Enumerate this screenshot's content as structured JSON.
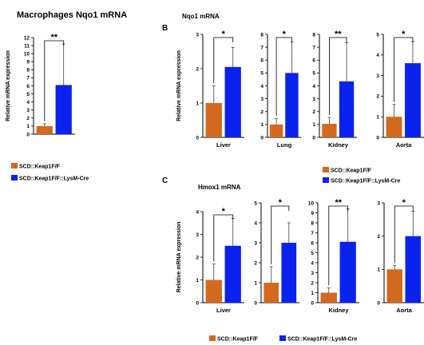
{
  "figure": {
    "panel_a_title": "Macrophages Nqo1 mRNA",
    "panel_b_letter": "B",
    "panel_b_title": "Nqo1 mRNA",
    "panel_c_letter": "C",
    "panel_c_title": "Hmox1 mRNA"
  },
  "colors": {
    "control": "#d2691e",
    "lysm": "#0a22ee"
  },
  "legends": {
    "a": [
      "SCD::Keap1F/F",
      "SCD::Keap1F/F::LysM-Cre"
    ],
    "b": [
      "SCD::Keap1F/F",
      "SCD::Keap1F/F::LysM-Cre"
    ],
    "c": [
      "SCD::Keap1F/F",
      "SCD::Keap1F/F::LysM-Cre"
    ]
  },
  "chart_data": [
    {
      "id": "a1",
      "type": "bar",
      "title": "",
      "ylabel": "Relative mRNA expression",
      "xlabel": "",
      "ylim": [
        0,
        12
      ],
      "ticks": [
        0,
        1,
        2,
        3,
        4,
        5,
        6,
        7,
        8,
        9,
        10,
        11,
        12
      ],
      "categories": [
        "SCD::Keap1F/F",
        "SCD::Keap1F/F::LysM-Cre"
      ],
      "values": [
        1.0,
        6.1
      ],
      "errors": [
        0.3,
        5.1
      ],
      "significance": "**"
    },
    {
      "id": "b1",
      "type": "bar",
      "title": "",
      "ylabel": "Relative mRNA expression",
      "xlabel": "Liver",
      "ylim": [
        0,
        3
      ],
      "ticks": [
        0,
        1,
        2,
        3
      ],
      "categories": [
        "SCD::Keap1F/F",
        "SCD::Keap1F/F::LysM-Cre"
      ],
      "values": [
        1.0,
        2.05
      ],
      "errors": [
        0.5,
        0.57
      ],
      "significance": "*"
    },
    {
      "id": "b2",
      "type": "bar",
      "title": "",
      "ylabel": "",
      "xlabel": "Lung",
      "ylim": [
        0,
        8
      ],
      "ticks": [
        0,
        1,
        2,
        3,
        4,
        5,
        6,
        7,
        8
      ],
      "categories": [
        "SCD::Keap1F/F",
        "SCD::Keap1F/F::LysM-Cre"
      ],
      "values": [
        1.0,
        5.0
      ],
      "errors": [
        0.45,
        2.4
      ],
      "significance": "*"
    },
    {
      "id": "b3",
      "type": "bar",
      "title": "",
      "ylabel": "",
      "xlabel": "Kidney",
      "ylim": [
        0,
        8
      ],
      "ticks": [
        0,
        1,
        2,
        3,
        4,
        5,
        6,
        7,
        8
      ],
      "categories": [
        "SCD::Keap1F/F",
        "SCD::Keap1F/F::LysM-Cre"
      ],
      "values": [
        1.05,
        4.35
      ],
      "errors": [
        0.5,
        3.0
      ],
      "significance": "**"
    },
    {
      "id": "b4",
      "type": "bar",
      "title": "",
      "ylabel": "",
      "xlabel": "Aorta",
      "ylim": [
        0,
        5
      ],
      "ticks": [
        0,
        1,
        2,
        3,
        4,
        5
      ],
      "categories": [
        "SCD::Keap1F/F",
        "SCD::Keap1F/F::LysM-Cre"
      ],
      "values": [
        1.0,
        3.6
      ],
      "errors": [
        0.6,
        1.05
      ],
      "significance": "*"
    },
    {
      "id": "c1",
      "type": "bar",
      "title": "",
      "ylabel": "Relative mRNA expression",
      "xlabel": "Liver",
      "ylim": [
        0,
        4
      ],
      "ticks": [
        0,
        1,
        2,
        3,
        4
      ],
      "categories": [
        "SCD::Keap1F/F",
        "SCD::Keap1F/F::LysM-Cre"
      ],
      "values": [
        1.0,
        2.5
      ],
      "errors": [
        0.7,
        1.2
      ],
      "significance": "*"
    },
    {
      "id": "c2",
      "type": "bar",
      "title": "",
      "ylabel": "",
      "xlabel": "",
      "ylim": [
        0,
        5
      ],
      "ticks": [
        0,
        1,
        2,
        3,
        4,
        5
      ],
      "categories": [
        "SCD::Keap1F/F",
        "SCD::Keap1F/F::LysM-Cre"
      ],
      "values": [
        1.0,
        3.0
      ],
      "errors": [
        0.8,
        1.0
      ],
      "significance": "*"
    },
    {
      "id": "c3",
      "type": "bar",
      "title": "",
      "ylabel": "",
      "xlabel": "Kidney",
      "ylim": [
        0,
        10
      ],
      "ticks": [
        0,
        1,
        2,
        3,
        4,
        5,
        6,
        7,
        8,
        9,
        10
      ],
      "categories": [
        "SCD::Keap1F/F",
        "SCD::Keap1F/F::LysM-Cre"
      ],
      "values": [
        1.0,
        6.1
      ],
      "errors": [
        0.5,
        3.3
      ],
      "significance": "**"
    },
    {
      "id": "c4",
      "type": "bar",
      "title": "",
      "ylabel": "",
      "xlabel": "Aorta",
      "ylim": [
        0,
        3
      ],
      "ticks": [
        0,
        1,
        2,
        3
      ],
      "categories": [
        "SCD::Keap1F/F",
        "SCD::Keap1F/F::LysM-Cre"
      ],
      "values": [
        1.0,
        2.0
      ],
      "errors": [
        0.12,
        0.75
      ],
      "significance": "*"
    }
  ]
}
